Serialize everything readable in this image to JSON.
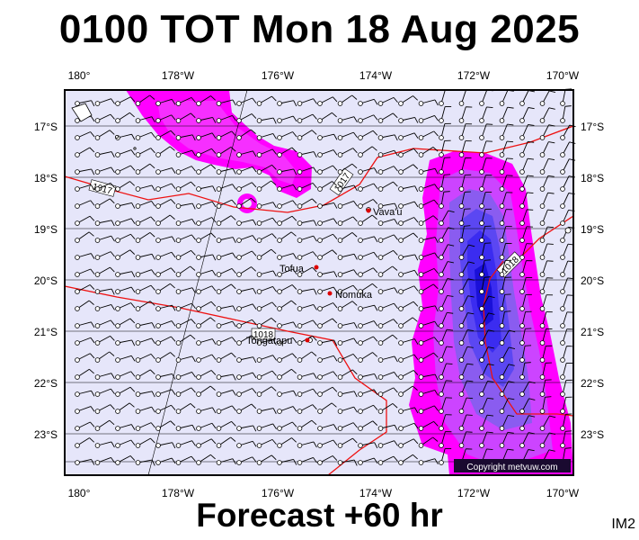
{
  "header": {
    "title": "0100 TOT Mon 18 Aug 2025"
  },
  "footer": {
    "forecast": "Forecast +60 hr",
    "image_id": "IM2"
  },
  "copyright": "Copyright metvuw.com",
  "axes": {
    "lon_top": [
      "180°",
      "178°W",
      "176°W",
      "174°W",
      "172°W",
      "170°W"
    ],
    "lon_bottom": [
      "180°",
      "178°W",
      "176°W",
      "174°W",
      "172°W",
      "170°W"
    ],
    "lat_left": [
      "17°S",
      "18°S",
      "19°S",
      "20°S",
      "21°S",
      "22°S",
      "23°S"
    ],
    "lat_right": [
      "17°S",
      "18°S",
      "19°S",
      "20°S",
      "21°S",
      "22°S",
      "23°S"
    ]
  },
  "places": [
    {
      "name": "Vava'u"
    },
    {
      "name": "Tofua"
    },
    {
      "name": "Nomuka"
    },
    {
      "name": "Tongatapu"
    }
  ],
  "isobars": [
    "1017",
    "1017",
    "1018",
    "1018"
  ],
  "colors": {
    "ocean": "#e6e6fa",
    "rain_light": "#ff00ff",
    "rain_medium": "#cc44ff",
    "rain_heavy": "#3b2cf0",
    "isobar": "#ee1111"
  }
}
